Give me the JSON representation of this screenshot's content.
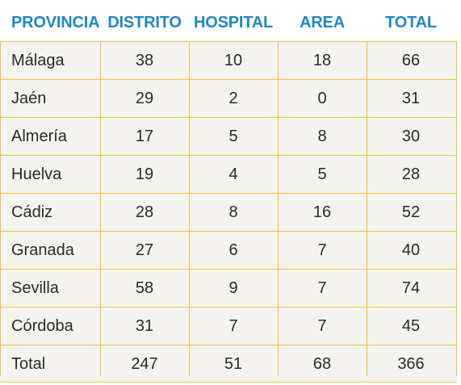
{
  "columns": [
    "PROVINCIA",
    "DISTRITO",
    "HOSPITAL",
    "AREA",
    "TOTAL"
  ],
  "rows": [
    [
      "Málaga",
      "38",
      "10",
      "18",
      "66"
    ],
    [
      "Jaén",
      "29",
      "2",
      "0",
      "31"
    ],
    [
      "Almería",
      "17",
      "5",
      "8",
      "30"
    ],
    [
      "Huelva",
      "19",
      "4",
      "5",
      "28"
    ],
    [
      "Cádiz",
      "28",
      "8",
      "16",
      "52"
    ],
    [
      "Granada",
      "27",
      "6",
      "7",
      "40"
    ],
    [
      "Sevilla",
      "58",
      "9",
      "7",
      "74"
    ],
    [
      "Córdoba",
      "31",
      "7",
      "7",
      "45"
    ]
  ],
  "total": [
    "Total",
    "247",
    "51",
    "68",
    "366"
  ],
  "colors": {
    "header_text": "#1f88c6",
    "rule": "#f0c23a",
    "cell_background": "#f4f3ef"
  }
}
